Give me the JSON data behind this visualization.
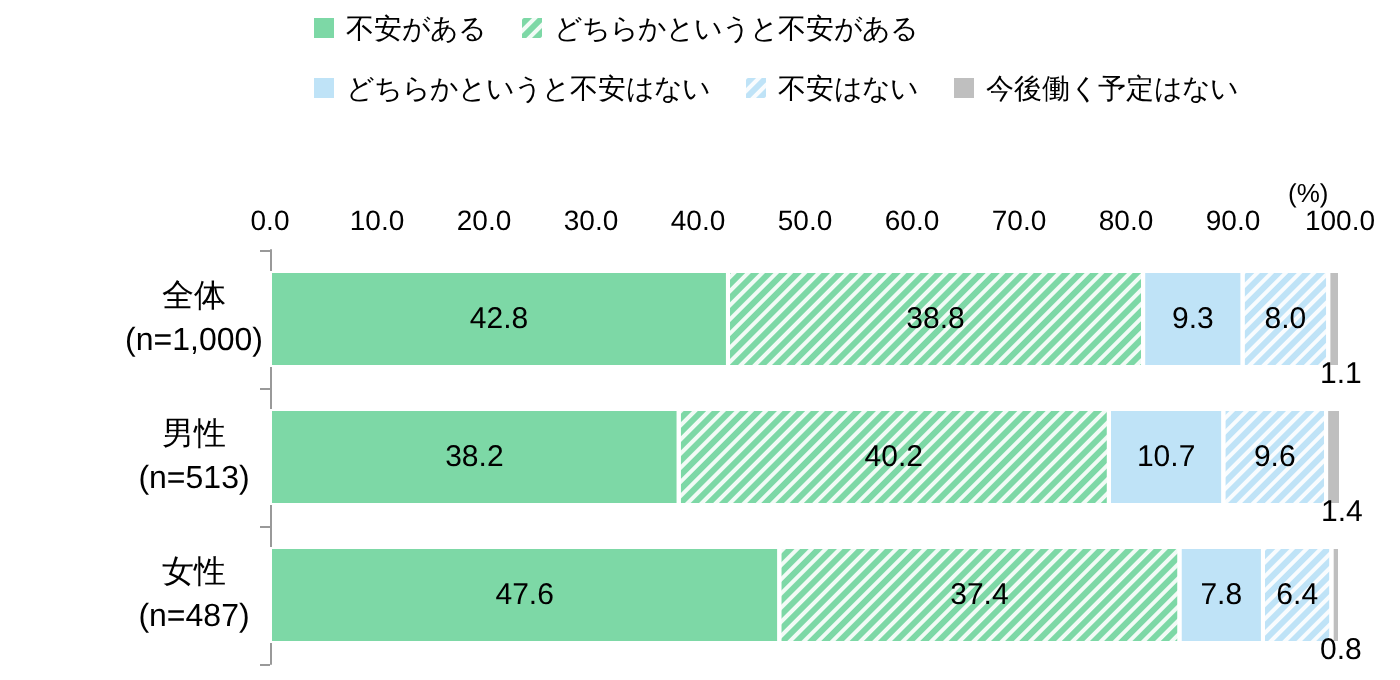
{
  "chart_data": {
    "type": "bar",
    "orientation": "horizontal",
    "stacked": true,
    "data_labels": true,
    "legend": "top left",
    "xlabel": "(%)",
    "categories": [
      "全体\n(n=1,000)",
      "男性\n(n=513)",
      "女性\n(n=487)"
    ],
    "xlim": [
      0,
      100
    ],
    "xticks": [
      {
        "value": 0,
        "label": "0.0"
      },
      {
        "value": 10,
        "label": "10.0"
      },
      {
        "value": 20,
        "label": "20.0"
      },
      {
        "value": 30,
        "label": "30.0"
      },
      {
        "value": 40,
        "label": "40.0"
      },
      {
        "value": 50,
        "label": "50.0"
      },
      {
        "value": 60,
        "label": "60.0"
      },
      {
        "value": 70,
        "label": "70.0"
      },
      {
        "value": 80,
        "label": "80.0"
      },
      {
        "value": 90,
        "label": "90.0"
      },
      {
        "value": 100,
        "label": "100.0"
      }
    ],
    "series": [
      {
        "name": "不安がある",
        "color": "#7dd8a6",
        "values": [
          42.8,
          38.2,
          47.6
        ]
      },
      {
        "name": "どちらかというと不安がある",
        "color": "#7dd8a6",
        "values": [
          38.8,
          40.2,
          37.4
        ]
      },
      {
        "name": "どちらかというと不安はない",
        "color": "#bfe3f7",
        "values": [
          9.3,
          10.7,
          7.8
        ]
      },
      {
        "name": "不安はない",
        "color": "#bfe3f7",
        "values": [
          8.0,
          9.6,
          6.4
        ],
        "value_labels": [
          "8.0",
          "9.6",
          "6.4"
        ]
      },
      {
        "name": "今後働く予定はない",
        "color": "#bfbfbf",
        "values": [
          1.1,
          1.4,
          0.8
        ]
      }
    ]
  }
}
